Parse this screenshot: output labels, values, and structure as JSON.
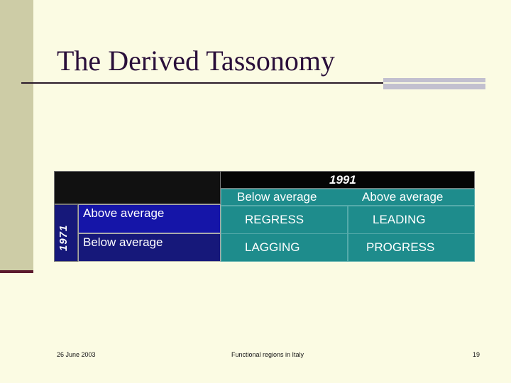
{
  "slide": {
    "title": "The Derived Tassonomy",
    "footer_date": "26 June 2003",
    "footer_center": "Functional regions in Italy",
    "page_number": "19"
  },
  "table": {
    "col_group_label": "1991",
    "row_group_label": "1971",
    "col_headers": [
      "Below average",
      "Above average"
    ],
    "rows": [
      {
        "label": "Above average",
        "cells": [
          "REGRESS",
          "LEADING"
        ]
      },
      {
        "label": "Below average",
        "cells": [
          "LAGGING",
          "PROGRESS"
        ]
      }
    ]
  },
  "colors": {
    "background": "#fbfbe3",
    "left_band": "#cdcca6",
    "navy": "#16187a",
    "teal": "#1e8c8c",
    "black_header": "#050505"
  }
}
